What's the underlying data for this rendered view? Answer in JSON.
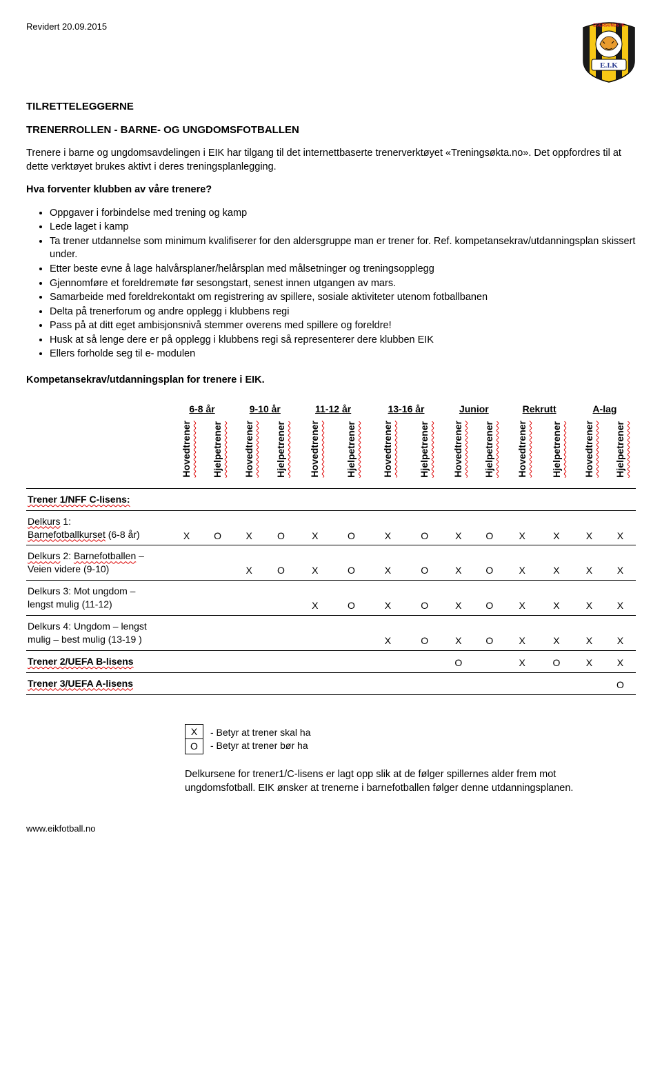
{
  "header": {
    "revised": "Revidert 20.09.2015",
    "logo_top_text": "EGERSUNDS IK",
    "logo_letters": "E.I.K"
  },
  "title": "TILRETTELEGGERNE",
  "subtitle": "TRENERROLLEN - BARNE- OG UNGDOMSFOTBALLEN",
  "intro": "Trenere i barne og ungdomsavdelingen i EIK har tilgang til det internettbaserte trenerverktøyet «Treningsøkta.no». Det oppfordres til at dette verktøyet brukes aktivt i deres treningsplanlegging.",
  "q": "Hva forventer klubben av våre trenere?",
  "bullets": [
    "Oppgaver i forbindelse med trening og kamp",
    "Lede laget i kamp",
    "Ta trener utdannelse som minimum kvalifiserer for den aldersgruppe man er trener for. Ref. kompetansekrav/utdanningsplan skissert under.",
    "Etter beste evne å lage halvårsplaner/helårsplan med målsetninger og treningsopplegg",
    "Gjennomføre et foreldremøte før sesongstart, senest innen utgangen av mars.",
    "Samarbeide med foreldrekontakt om registrering av spillere, sosiale aktiviteter utenom fotballbanen",
    "Delta på trenerforum og andre opplegg i klubbens regi",
    "Pass på at ditt eget ambisjonsnivå stemmer overens med spillere og foreldre!",
    "Husk at så lenge dere er på opplegg i klubbens regi så representerer dere klubben EIK",
    "Ellers forholde seg til e- modulen"
  ],
  "section_head": "Kompetansekrav/utdanningsplan for trenere i EIK.",
  "table": {
    "ages": [
      "6-8 år",
      "9-10 år",
      "11-12 år",
      "13-16 år",
      "Junior",
      "Rekrutt",
      "A-lag"
    ],
    "roles": [
      "Hovedtrener",
      "Hjelpetrener"
    ],
    "section_label": "Trener 1/NFF C-lisens:",
    "rows": [
      {
        "label": "Delkurs 1:\nBarnefotballkurset (6-8 år)",
        "wavy_words": [
          "Delkurs",
          "Barnefotballkurset"
        ],
        "c": [
          "X",
          "O",
          "X",
          "O",
          "X",
          "O",
          "X",
          "O",
          "X",
          "O",
          "X",
          "X",
          "X",
          "X"
        ]
      },
      {
        "label": "Delkurs 2: Barnefotballen –\nVeien videre (9-10)",
        "wavy_words": [
          "Delkurs",
          "Barnefotballen"
        ],
        "c": [
          "",
          "",
          "X",
          "O",
          "X",
          "O",
          "X",
          "O",
          "X",
          "O",
          "X",
          "X",
          "X",
          "X"
        ]
      },
      {
        "label": "Delkurs 3: Mot ungdom –\nlengst mulig (11-12)",
        "wavy_words": [],
        "c": [
          "",
          "",
          "",
          "",
          "X",
          "O",
          "X",
          "O",
          "X",
          "O",
          "X",
          "X",
          "X",
          "X"
        ]
      },
      {
        "label": "Delkurs 4: Ungdom – lengst\nmulig – best mulig (13-19 )",
        "wavy_words": [],
        "c": [
          "",
          "",
          "",
          "",
          "",
          "",
          "X",
          "O",
          "X",
          "O",
          "X",
          "X",
          "X",
          "X"
        ]
      },
      {
        "label": "Trener 2/UEFA B-lisens",
        "wavy_words": [
          "lisens"
        ],
        "bold": true,
        "c": [
          "",
          "",
          "",
          "",
          "",
          "",
          "",
          "",
          "O",
          "",
          "X",
          "O",
          "X",
          "X"
        ]
      },
      {
        "label": "Trener 3/UEFA A-lisens",
        "wavy_words": [
          "lisens"
        ],
        "bold": true,
        "c": [
          "",
          "",
          "",
          "",
          "",
          "",
          "",
          "",
          "",
          "",
          "",
          "",
          "",
          "O"
        ]
      }
    ]
  },
  "legend": {
    "x": "X",
    "x_text": "- Betyr at trener skal ha",
    "o": "O",
    "o_text": "- Betyr at trener bør ha"
  },
  "note": "Delkursene for trener1/C-lisens er lagt opp slik at de følger spillernes alder frem mot ungdomsfotball. EIK ønsker at trenerne i barnefotballen følger denne utdanningsplanen.",
  "footer": "www.eikfotball.no",
  "colors": {
    "wavy": "#d00",
    "logo_yellow": "#f7c815",
    "logo_black": "#1a1a1a",
    "logo_blue_text": "#2a3b8f",
    "logo_red": "#c8102e"
  }
}
